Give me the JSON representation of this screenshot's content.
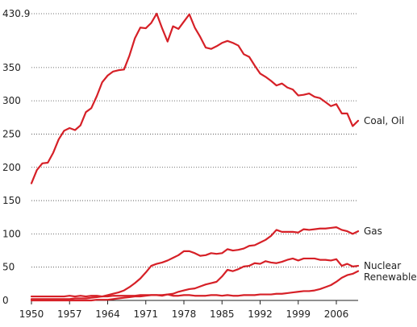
{
  "chart_data": {
    "type": "line",
    "title": "",
    "xlabel": "",
    "ylabel": "",
    "xlim": [
      1950,
      2010
    ],
    "ylim": [
      0,
      430.9
    ],
    "x_ticks": [
      "1950",
      "1957",
      "1964",
      "1971",
      "1978",
      "1985",
      "1992",
      "1999",
      "2006"
    ],
    "y_ticks": [
      "0",
      "50",
      "100",
      "150",
      "200",
      "250",
      "300",
      "350",
      "430.9"
    ],
    "grid": true,
    "colors": {
      "series": "#d62027",
      "grid": "#444444",
      "text": "#222222"
    },
    "x": [
      1950,
      1951,
      1952,
      1953,
      1954,
      1955,
      1956,
      1957,
      1958,
      1959,
      1960,
      1961,
      1962,
      1963,
      1964,
      1965,
      1966,
      1967,
      1968,
      1969,
      1970,
      1971,
      1972,
      1973,
      1974,
      1975,
      1976,
      1977,
      1978,
      1979,
      1980,
      1981,
      1982,
      1983,
      1984,
      1985,
      1986,
      1987,
      1988,
      1989,
      1990,
      1991,
      1992,
      1993,
      1994,
      1995,
      1996,
      1997,
      1998,
      1999,
      2000,
      2001,
      2002,
      2003,
      2004,
      2005,
      2006,
      2007,
      2008,
      2009,
      2010
    ],
    "series": [
      {
        "name": "Coal, Oil",
        "values": [
          176,
          196,
          206,
          207,
          222,
          242,
          255,
          259,
          256,
          263,
          283,
          289,
          307,
          328,
          338,
          344,
          346,
          347,
          368,
          394,
          410,
          409,
          417,
          431,
          409,
          389,
          412,
          408,
          419,
          430,
          410,
          396,
          380,
          378,
          382,
          387,
          390,
          387,
          383,
          370,
          366,
          353,
          341,
          336,
          330,
          323,
          326,
          320,
          317,
          308,
          309,
          311,
          306,
          304,
          298,
          292,
          295,
          281,
          281,
          262,
          270
        ]
      },
      {
        "name": "Gas",
        "values": [
          2,
          2,
          2,
          2,
          2,
          2,
          2,
          2,
          3,
          3,
          3,
          4,
          5,
          6,
          8,
          10,
          12,
          15,
          20,
          26,
          33,
          42,
          52,
          55,
          57,
          60,
          64,
          68,
          74,
          74,
          71,
          67,
          68,
          71,
          70,
          71,
          77,
          75,
          76,
          78,
          82,
          83,
          87,
          91,
          97,
          106,
          103,
          103,
          103,
          102,
          107,
          106,
          107,
          108,
          108,
          109,
          110,
          106,
          104,
          100,
          104
        ]
      },
      {
        "name": "Nuclear",
        "values": [
          0,
          0,
          0,
          0,
          0,
          0,
          0,
          0,
          0,
          0,
          0,
          0,
          1,
          1,
          1,
          2,
          3,
          4,
          5,
          6,
          6,
          7,
          8,
          8,
          8,
          9,
          10,
          13,
          15,
          17,
          18,
          21,
          24,
          26,
          28,
          36,
          46,
          44,
          47,
          51,
          52,
          56,
          55,
          59,
          57,
          56,
          58,
          61,
          63,
          60,
          63,
          63,
          63,
          61,
          61,
          60,
          62,
          52,
          55,
          51,
          52
        ]
      },
      {
        "name": "Renewables",
        "values": [
          6,
          6,
          6,
          6,
          6,
          6,
          6,
          7,
          6,
          7,
          6,
          7,
          7,
          6,
          6,
          7,
          7,
          7,
          7,
          7,
          8,
          8,
          8,
          8,
          7,
          9,
          7,
          7,
          8,
          8,
          7,
          7,
          7,
          8,
          8,
          7,
          8,
          7,
          7,
          8,
          8,
          8,
          9,
          9,
          9,
          10,
          10,
          11,
          12,
          13,
          14,
          14,
          15,
          17,
          20,
          23,
          28,
          34,
          38,
          40,
          44
        ]
      }
    ]
  }
}
